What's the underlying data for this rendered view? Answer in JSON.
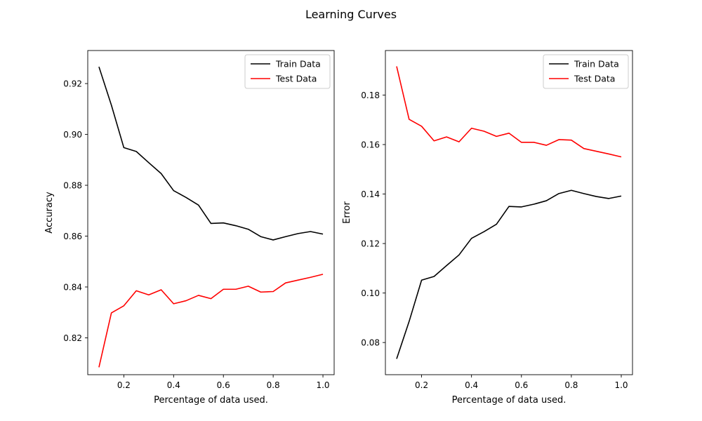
{
  "figure": {
    "title": "Learning Curves"
  },
  "chart_data": [
    {
      "type": "line",
      "title": "",
      "xlabel": "Percentage of data used.",
      "ylabel": "Accuracy",
      "xlim": [
        0.055,
        1.045
      ],
      "ylim": [
        0.8055,
        0.933
      ],
      "xticks": [
        0.2,
        0.4,
        0.6,
        0.8,
        1.0
      ],
      "xtick_labels": [
        "0.2",
        "0.4",
        "0.6",
        "0.8",
        "1.0"
      ],
      "yticks": [
        0.82,
        0.84,
        0.86,
        0.88,
        0.9,
        0.92
      ],
      "ytick_labels": [
        "0.82",
        "0.84",
        "0.86",
        "0.88",
        "0.90",
        "0.92"
      ],
      "grid": false,
      "legend": "top-right",
      "x": [
        0.1,
        0.15,
        0.2,
        0.25,
        0.3,
        0.35,
        0.4,
        0.45,
        0.5,
        0.55,
        0.6,
        0.65,
        0.7,
        0.75,
        0.8,
        0.85,
        0.9,
        0.95,
        1.0
      ],
      "series": [
        {
          "name": "Train Data",
          "color": "#000000",
          "values": [
            0.9266,
            0.9115,
            0.8948,
            0.8933,
            0.8889,
            0.8846,
            0.8779,
            0.8752,
            0.8722,
            0.865,
            0.8652,
            0.8641,
            0.8627,
            0.8598,
            0.8585,
            0.8598,
            0.861,
            0.8618,
            0.8608
          ]
        },
        {
          "name": "Test Data",
          "color": "#ff0000",
          "values": [
            0.8084,
            0.8298,
            0.8326,
            0.8385,
            0.8369,
            0.8389,
            0.8334,
            0.8346,
            0.8367,
            0.8354,
            0.8391,
            0.8391,
            0.8403,
            0.838,
            0.8382,
            0.8416,
            0.8427,
            0.8438,
            0.845
          ]
        }
      ]
    },
    {
      "type": "line",
      "title": "",
      "xlabel": "Percentage of data used.",
      "ylabel": "Error",
      "xlim": [
        0.055,
        1.045
      ],
      "ylim": [
        0.067,
        0.198
      ],
      "xticks": [
        0.2,
        0.4,
        0.6,
        0.8,
        1.0
      ],
      "xtick_labels": [
        "0.2",
        "0.4",
        "0.6",
        "0.8",
        "1.0"
      ],
      "yticks": [
        0.08,
        0.1,
        0.12,
        0.14,
        0.16,
        0.18
      ],
      "ytick_labels": [
        "0.08",
        "0.10",
        "0.12",
        "0.14",
        "0.16",
        "0.18"
      ],
      "grid": false,
      "legend": "top-right",
      "x": [
        0.1,
        0.15,
        0.2,
        0.25,
        0.3,
        0.35,
        0.4,
        0.45,
        0.5,
        0.55,
        0.6,
        0.65,
        0.7,
        0.75,
        0.8,
        0.85,
        0.9,
        0.95,
        1.0
      ],
      "series": [
        {
          "name": "Train Data",
          "color": "#000000",
          "values": [
            0.0734,
            0.0885,
            0.1052,
            0.1067,
            0.1111,
            0.1154,
            0.1221,
            0.1248,
            0.1278,
            0.135,
            0.1348,
            0.1359,
            0.1373,
            0.1402,
            0.1415,
            0.1402,
            0.139,
            0.1382,
            0.1392
          ]
        },
        {
          "name": "Test Data",
          "color": "#ff0000",
          "values": [
            0.1916,
            0.1702,
            0.1674,
            0.1615,
            0.1631,
            0.1611,
            0.1666,
            0.1654,
            0.1633,
            0.1646,
            0.1609,
            0.1609,
            0.1597,
            0.162,
            0.1618,
            0.1584,
            0.1573,
            0.1562,
            0.155
          ]
        }
      ]
    }
  ]
}
